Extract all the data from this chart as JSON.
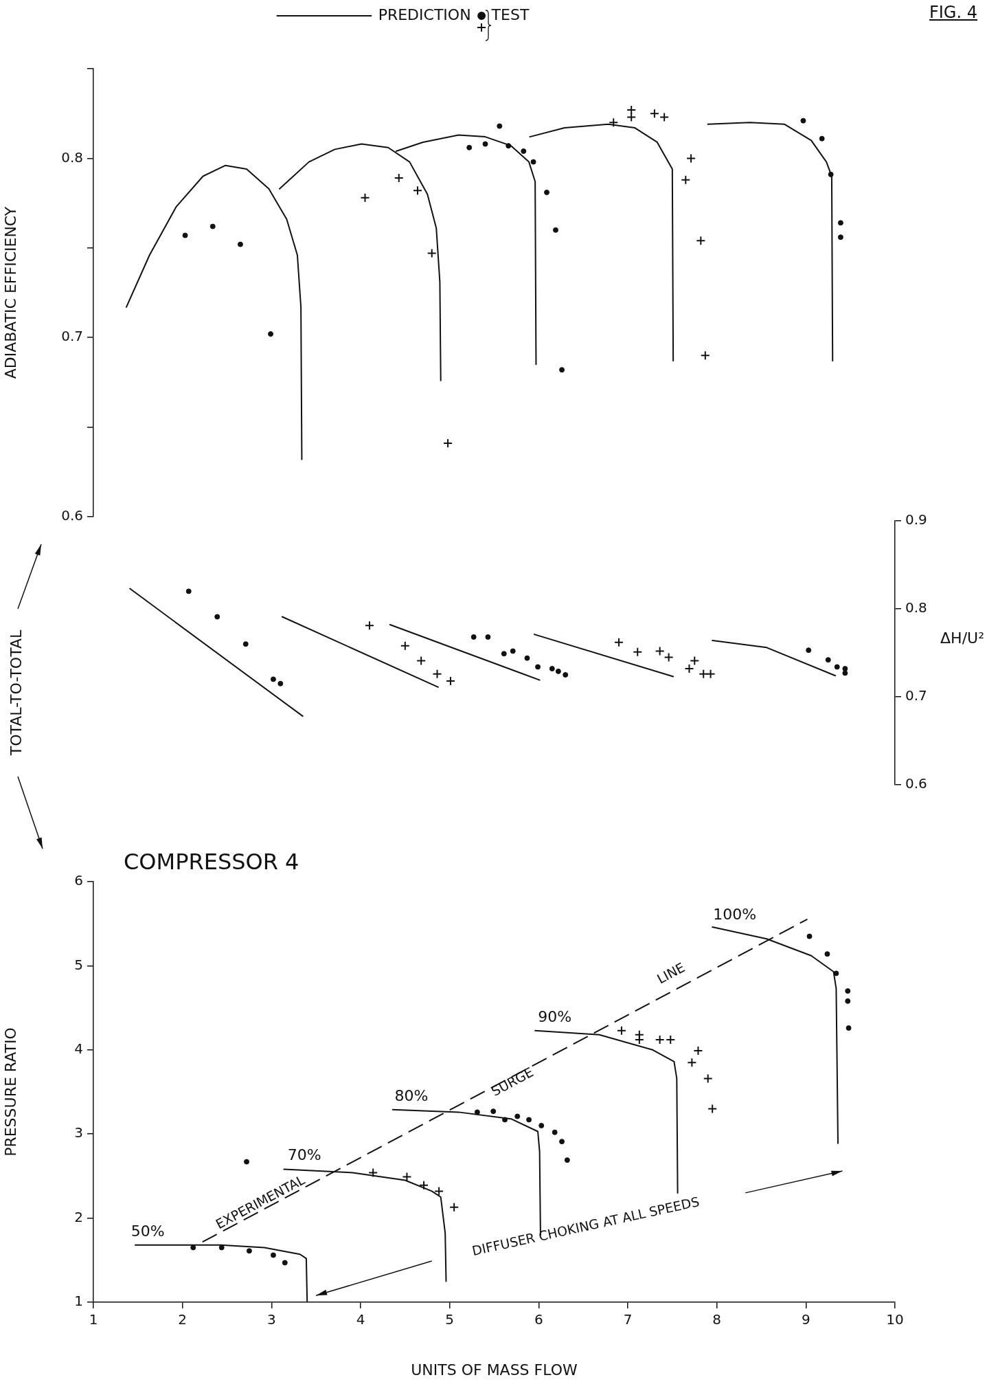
{
  "chart_data": [
    {
      "type": "line",
      "ylabel": "ADIABATIC EFFICIENCY",
      "legend": "top",
      "tick_labels": "y",
      "annotations": [
        "FIG. 4"
      ],
      "xlim": [
        1,
        10
      ],
      "ylim": [
        0.6,
        0.85
      ],
      "yticks": [
        0.6,
        {
          "value": 0.65,
          "label": null
        },
        0.7,
        {
          "value": 0.75,
          "label": null
        },
        0.8,
        {
          "value": 0.85,
          "label": null
        }
      ],
      "series": [
        {
          "name": "PREDICTION",
          "type": "line",
          "marker": "none",
          "color": "#111111",
          "x": [
            1.37,
            1.63,
            1.93,
            2.23,
            2.48,
            2.72,
            2.97,
            3.17,
            3.29,
            3.33,
            3.34
          ],
          "values": [
            0.717,
            0.746,
            0.773,
            0.79,
            0.796,
            0.794,
            0.783,
            0.766,
            0.746,
            0.717,
            0.632
          ]
        },
        {
          "type": "line",
          "marker": "none",
          "color": "#111111",
          "x": [
            3.09,
            3.42,
            3.71,
            4.01,
            4.31,
            4.55,
            4.75,
            4.85,
            4.89,
            4.9
          ],
          "values": [
            0.783,
            0.798,
            0.805,
            0.808,
            0.806,
            0.798,
            0.78,
            0.761,
            0.731,
            0.676
          ]
        },
        {
          "type": "line",
          "marker": "none",
          "color": "#111111",
          "x": [
            4.4,
            4.7,
            5.1,
            5.4,
            5.69,
            5.89,
            5.96,
            5.97
          ],
          "values": [
            0.804,
            0.809,
            0.813,
            0.812,
            0.807,
            0.798,
            0.787,
            0.685
          ]
        },
        {
          "type": "line",
          "marker": "none",
          "color": "#111111",
          "x": [
            5.9,
            6.29,
            6.78,
            7.08,
            7.33,
            7.5,
            7.51
          ],
          "values": [
            0.812,
            0.817,
            0.819,
            0.817,
            0.809,
            0.794,
            0.687
          ]
        },
        {
          "type": "line",
          "marker": "none",
          "color": "#111111",
          "x": [
            7.9,
            8.37,
            8.76,
            9.06,
            9.23,
            9.29,
            9.3
          ],
          "values": [
            0.819,
            0.82,
            0.819,
            0.81,
            0.798,
            0.79,
            0.687
          ]
        },
        {
          "name": "TEST",
          "type": "scatter",
          "marker": "circle",
          "color": "#111111",
          "x": [
            2.03,
            2.34,
            2.65,
            2.99,
            5.22,
            5.4,
            5.56,
            5.66,
            5.83,
            5.94,
            6.09,
            6.19,
            6.26,
            8.97,
            9.18,
            9.28,
            9.39,
            9.39
          ],
          "values": [
            0.757,
            0.762,
            0.752,
            0.702,
            0.806,
            0.808,
            0.818,
            0.807,
            0.804,
            0.798,
            0.781,
            0.76,
            0.682,
            0.821,
            0.811,
            0.791,
            0.764,
            0.756
          ]
        },
        {
          "type": "scatter",
          "marker": "cross",
          "color": "#111111",
          "x": [
            4.05,
            4.43,
            4.64,
            4.8,
            4.98,
            6.84,
            7.04,
            7.04,
            7.3,
            7.41,
            7.71,
            7.65,
            7.82,
            7.87
          ],
          "values": [
            0.778,
            0.789,
            0.782,
            0.747,
            0.641,
            0.82,
            0.827,
            0.823,
            0.825,
            0.823,
            0.8,
            0.788,
            0.754,
            0.69
          ]
        }
      ]
    },
    {
      "type": "line",
      "y2label": "ΔH/U²",
      "tick_labels": "y2",
      "annotations": [
        "TOTAL-TO-TOTAL"
      ],
      "xlim": [
        1,
        10
      ],
      "y2lim": [
        0.6,
        0.9
      ],
      "y2ticks": [
        0.6,
        0.7,
        0.8,
        0.9
      ],
      "series": [
        {
          "type": "line",
          "marker": "none",
          "axis": "y2",
          "color": "#111111",
          "x": [
            1.41,
            3.35
          ],
          "values": [
            0.823,
            0.678
          ]
        },
        {
          "type": "line",
          "marker": "none",
          "axis": "y2",
          "color": "#111111",
          "x": [
            3.12,
            4.87
          ],
          "values": [
            0.791,
            0.711
          ]
        },
        {
          "type": "line",
          "marker": "none",
          "axis": "y2",
          "color": "#111111",
          "x": [
            4.33,
            6.01
          ],
          "values": [
            0.782,
            0.719
          ]
        },
        {
          "type": "line",
          "marker": "none",
          "axis": "y2",
          "color": "#111111",
          "x": [
            5.95,
            7.51
          ],
          "values": [
            0.771,
            0.723
          ]
        },
        {
          "type": "line",
          "marker": "none",
          "axis": "y2",
          "color": "#111111",
          "x": [
            7.95,
            8.56,
            9.33
          ],
          "values": [
            0.764,
            0.756,
            0.724
          ]
        },
        {
          "type": "scatter",
          "marker": "circle",
          "axis": "y2",
          "color": "#111111",
          "x": [
            2.07,
            2.39,
            2.71,
            3.02,
            3.1,
            5.27,
            5.43,
            5.61,
            5.71,
            5.87,
            5.99,
            6.15,
            6.22,
            6.3,
            9.03,
            9.25,
            9.35,
            9.44,
            9.44
          ],
          "values": [
            0.82,
            0.791,
            0.76,
            0.72,
            0.715,
            0.768,
            0.768,
            0.749,
            0.752,
            0.744,
            0.734,
            0.732,
            0.729,
            0.725,
            0.753,
            0.742,
            0.734,
            0.732,
            0.727
          ]
        },
        {
          "type": "scatter",
          "marker": "cross",
          "axis": "y2",
          "color": "#111111",
          "x": [
            4.1,
            4.5,
            4.68,
            4.86,
            5.01,
            6.9,
            7.11,
            7.36,
            7.46,
            7.69,
            7.75,
            7.85,
            7.93
          ],
          "values": [
            0.781,
            0.758,
            0.741,
            0.726,
            0.718,
            0.762,
            0.751,
            0.752,
            0.745,
            0.732,
            0.741,
            0.726,
            0.726
          ]
        }
      ]
    },
    {
      "type": "line",
      "title": "COMPRESSOR 4",
      "xlabel": "UNITS OF MASS FLOW",
      "ylabel": "PRESSURE RATIO",
      "xlim": [
        1,
        10
      ],
      "ylim": [
        1,
        6
      ],
      "xticks": [
        1,
        2,
        3,
        4,
        5,
        6,
        7,
        8,
        9,
        10
      ],
      "yticks": [
        1,
        2,
        3,
        4,
        5,
        6
      ],
      "annotations": [
        "50%",
        "70%",
        "80%",
        "90%",
        "100%",
        "EXPERIMENTAL",
        "SURGE",
        "LINE",
        "DIFFUSER CHOKING AT ALL SPEEDS"
      ],
      "series": [
        {
          "type": "line",
          "marker": "none",
          "color": "#111111",
          "x": [
            1.47,
            2.43,
            2.92,
            3.32,
            3.39,
            3.4
          ],
          "values": [
            1.68,
            1.68,
            1.65,
            1.57,
            1.52,
            1.0
          ]
        },
        {
          "type": "line",
          "marker": "none",
          "color": "#111111",
          "x": [
            3.14,
            3.91,
            4.5,
            4.8,
            4.9,
            4.95,
            4.96
          ],
          "values": [
            2.58,
            2.54,
            2.45,
            2.32,
            2.25,
            1.82,
            1.25
          ]
        },
        {
          "type": "line",
          "marker": "none",
          "color": "#111111",
          "x": [
            4.36,
            5.1,
            5.69,
            5.99,
            6.01,
            6.02
          ],
          "values": [
            3.29,
            3.26,
            3.18,
            3.03,
            2.79,
            1.8
          ]
        },
        {
          "type": "line",
          "marker": "none",
          "color": "#111111",
          "x": [
            5.96,
            6.68,
            7.28,
            7.52,
            7.55,
            7.56
          ],
          "values": [
            4.23,
            4.18,
            4.0,
            3.86,
            3.66,
            2.3
          ]
        },
        {
          "type": "line",
          "marker": "none",
          "color": "#111111",
          "x": [
            7.95,
            8.56,
            9.06,
            9.31,
            9.34,
            9.36
          ],
          "values": [
            5.46,
            5.32,
            5.12,
            4.93,
            4.73,
            2.89
          ]
        },
        {
          "type": "line",
          "marker": "none",
          "line_style": "dashed",
          "color": "#111111",
          "x": [
            2.23,
            9.01
          ],
          "values": [
            1.72,
            5.55
          ]
        },
        {
          "type": "scatter",
          "marker": "circle",
          "color": "#111111",
          "x": [
            2.12,
            2.44,
            2.75,
            3.02,
            3.15,
            2.72,
            5.31,
            5.49,
            5.62,
            5.76,
            5.89,
            6.03,
            6.18,
            6.26,
            6.32,
            9.04,
            9.24,
            9.34,
            9.47,
            9.47,
            9.48
          ],
          "values": [
            1.65,
            1.65,
            1.61,
            1.56,
            1.47,
            2.67,
            3.26,
            3.27,
            3.17,
            3.21,
            3.17,
            3.1,
            3.02,
            2.91,
            2.69,
            5.35,
            5.14,
            4.91,
            4.7,
            4.58,
            4.26
          ]
        },
        {
          "type": "scatter",
          "marker": "cross",
          "color": "#111111",
          "x": [
            4.14,
            4.52,
            4.71,
            4.88,
            5.05,
            6.93,
            7.13,
            7.13,
            7.36,
            7.48,
            7.79,
            7.72,
            7.9,
            7.95
          ],
          "values": [
            2.54,
            2.49,
            2.39,
            2.32,
            2.13,
            4.23,
            4.18,
            4.12,
            4.12,
            4.12,
            3.99,
            3.85,
            3.66,
            3.3
          ]
        }
      ]
    }
  ]
}
